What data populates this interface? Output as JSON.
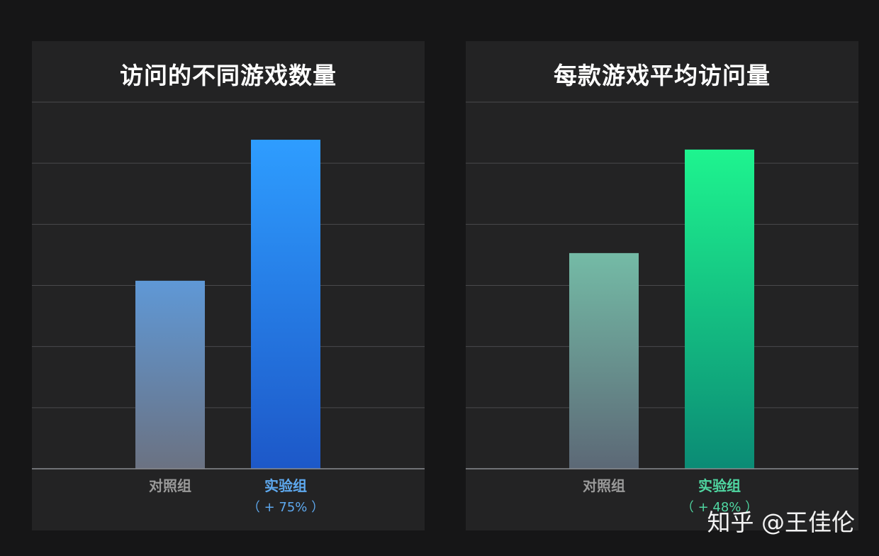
{
  "chart_data": [
    {
      "type": "bar",
      "title": "访问的不同游戏数量",
      "categories": [
        "对照组",
        "实验组"
      ],
      "values": [
        100,
        175
      ],
      "annotations": [
        "",
        "（ + 75% ）"
      ],
      "ylim": [
        0,
        195
      ],
      "grid": true,
      "colors": {
        "control_top": "#5f98d6",
        "control_bottom": "#6b7282",
        "experiment_top": "#2e9dff",
        "experiment_bottom": "#1d58c8",
        "control_label": "#9a9a9a",
        "experiment_label": "#5ea9ef"
      }
    },
    {
      "type": "bar",
      "title": "每款游戏平均访问量",
      "categories": [
        "对照组",
        "实验组"
      ],
      "values": [
        100,
        148
      ],
      "annotations": [
        "",
        "（ + 48% ）"
      ],
      "ylim": [
        0,
        170
      ],
      "grid": true,
      "colors": {
        "control_top": "#74bba6",
        "control_bottom": "#5c6876",
        "experiment_top": "#1ef48f",
        "experiment_bottom": "#0b8b75",
        "control_label": "#9a9a9a",
        "experiment_label": "#4fd6a1"
      }
    }
  ],
  "watermark": "知乎 @王佳伦"
}
